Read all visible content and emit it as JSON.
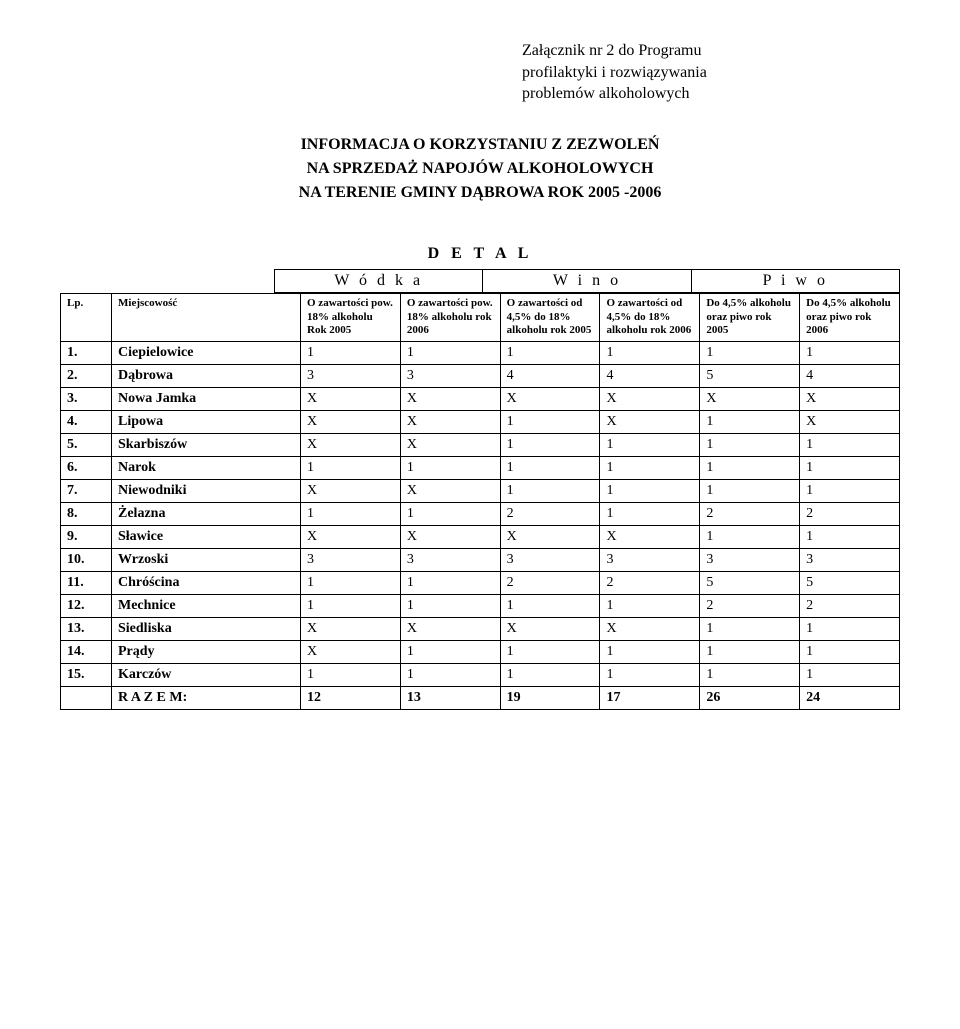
{
  "attachment": {
    "line1": "Załącznik nr 2 do Programu",
    "line2": "profilaktyki i rozwiązywania",
    "line3": "problemów alkoholowych"
  },
  "title": {
    "line1": "INFORMACJA O KORZYSTANIU Z ZEZWOLEŃ",
    "line2": "NA SPRZEDAŻ NAPOJÓW ALKOHOLOWYCH",
    "line3": "NA  TERENIE  GMINY  DĄBROWA ROK 2005 -2006"
  },
  "detal": "D E T A L",
  "categories": [
    "W ó d k a",
    "W i n o",
    "P i w o"
  ],
  "columns": {
    "lp": "Lp.",
    "loc": "Miejscowość",
    "c1": "O zawartości pow. 18% alkoholu Rok  2005",
    "c2": "O zawartości pow. 18% alkoholu rok 2006",
    "c3": "O zawartości od 4,5% do 18% alkoholu rok 2005",
    "c4": "O zawartości od 4,5% do 18% alkoholu rok 2006",
    "c5": "Do 4,5% alkoholu oraz piwo rok 2005",
    "c6": "Do 4,5% alkoholu oraz piwo rok 2006"
  },
  "rows": [
    {
      "lp": "1.",
      "loc": "Ciepielowice",
      "v": [
        "1",
        "1",
        "1",
        "1",
        "1",
        "1"
      ]
    },
    {
      "lp": "2.",
      "loc": "Dąbrowa",
      "v": [
        "3",
        "3",
        "4",
        "4",
        "5",
        "4"
      ]
    },
    {
      "lp": "3.",
      "loc": "Nowa Jamka",
      "v": [
        "X",
        "X",
        "X",
        "X",
        "X",
        "X"
      ]
    },
    {
      "lp": "4.",
      "loc": "Lipowa",
      "v": [
        "X",
        "X",
        "1",
        "X",
        "1",
        "X"
      ]
    },
    {
      "lp": "5.",
      "loc": "Skarbiszów",
      "v": [
        "X",
        "X",
        "1",
        "1",
        "1",
        "1"
      ]
    },
    {
      "lp": "6.",
      "loc": "Narok",
      "v": [
        "1",
        "1",
        "1",
        "1",
        "1",
        "1"
      ]
    },
    {
      "lp": "7.",
      "loc": "Niewodniki",
      "v": [
        "X",
        "X",
        "1",
        "1",
        "1",
        "1"
      ]
    },
    {
      "lp": "8.",
      "loc": "Żelazna",
      "v": [
        "1",
        "1",
        "2",
        "1",
        "2",
        "2"
      ]
    },
    {
      "lp": "9.",
      "loc": "Sławice",
      "v": [
        "X",
        "X",
        "X",
        "X",
        "1",
        "1"
      ]
    },
    {
      "lp": "10.",
      "loc": "Wrzoski",
      "v": [
        "3",
        "3",
        "3",
        "3",
        "3",
        "3"
      ]
    },
    {
      "lp": "11.",
      "loc": "Chróścina",
      "v": [
        "1",
        "1",
        "2",
        "2",
        "5",
        "5"
      ]
    },
    {
      "lp": "12.",
      "loc": "Mechnice",
      "v": [
        "1",
        "1",
        "1",
        "1",
        "2",
        "2"
      ]
    },
    {
      "lp": "13.",
      "loc": "Siedliska",
      "v": [
        "X",
        "X",
        "X",
        "X",
        "1",
        "1"
      ]
    },
    {
      "lp": "14.",
      "loc": "Prądy",
      "v": [
        "X",
        "1",
        "1",
        "1",
        "1",
        "1"
      ]
    },
    {
      "lp": "15.",
      "loc": "Karczów",
      "v": [
        "1",
        "1",
        "1",
        "1",
        "1",
        "1"
      ]
    }
  ],
  "total": {
    "label": "R A Z E M:",
    "v": [
      "12",
      "13",
      "19",
      "17",
      "26",
      "24"
    ]
  }
}
